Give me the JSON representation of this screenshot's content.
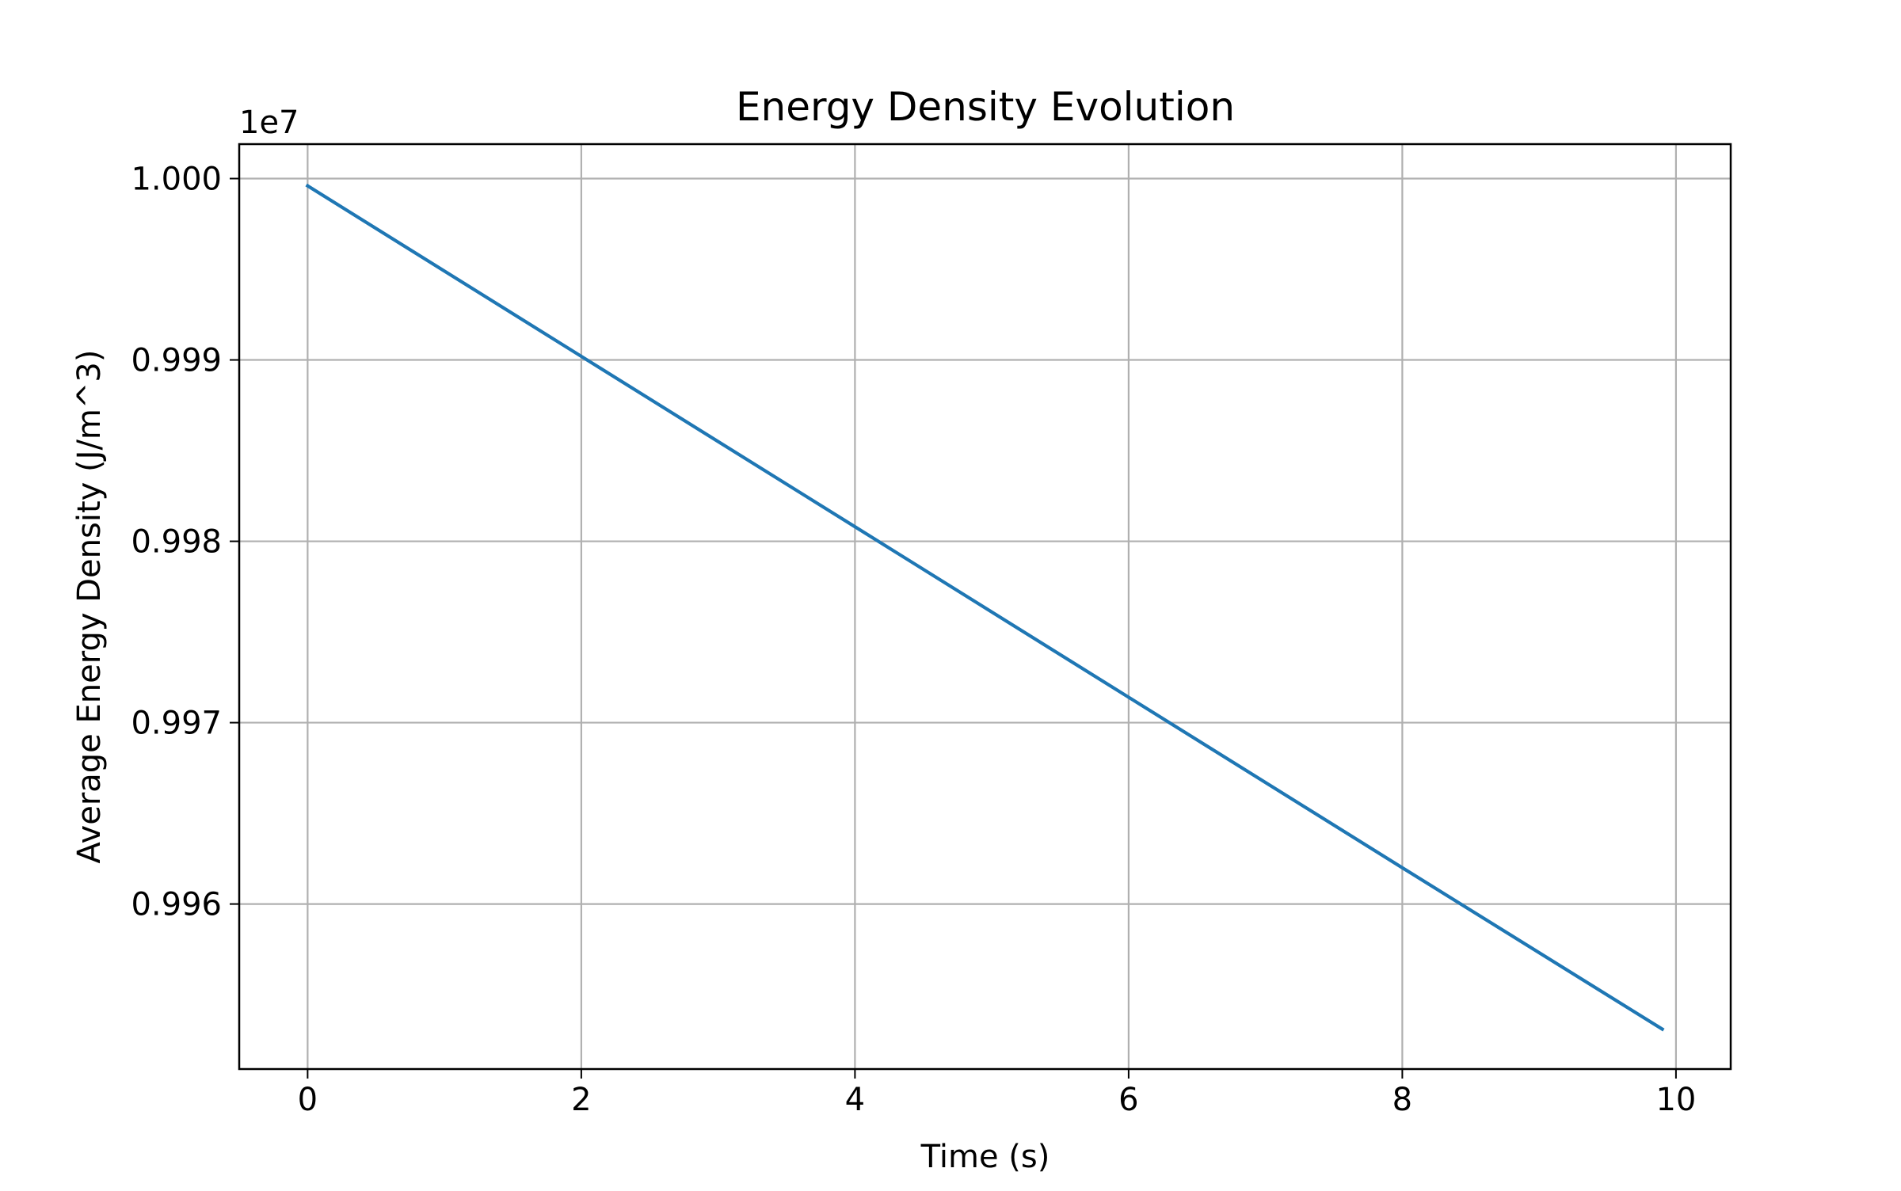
{
  "chart_data": {
    "type": "line",
    "title": "Energy Density Evolution",
    "xlabel": "Time (s)",
    "ylabel": "Average Energy Density (J/m^3)",
    "y_offset_label": "1e7",
    "y_scale_multiplier": 10000000,
    "xlim": [
      -0.5,
      10.4
    ],
    "ylim": [
      0.99509,
      1.00019
    ],
    "x_ticks": [
      0,
      2,
      4,
      6,
      8,
      10
    ],
    "x_tick_labels": [
      "0",
      "2",
      "4",
      "6",
      "8",
      "10"
    ],
    "y_ticks": [
      0.996,
      0.997,
      0.998,
      0.999,
      1.0
    ],
    "y_tick_labels": [
      "0.996",
      "0.997",
      "0.998",
      "0.999",
      "1.000"
    ],
    "grid": true,
    "legend": "none",
    "series": [
      {
        "color": "#1f77b4",
        "x": [
          0,
          2,
          4,
          6,
          8,
          9.9
        ],
        "y": [
          0.99996,
          0.99902,
          0.99808,
          0.99714,
          0.9962,
          0.99531
        ]
      }
    ]
  }
}
